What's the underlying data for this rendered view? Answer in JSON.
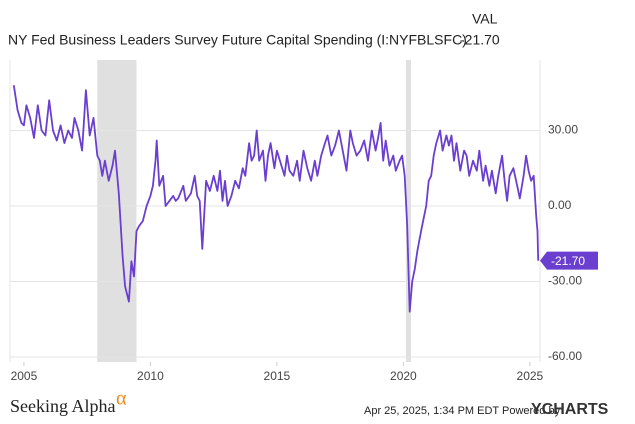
{
  "chart_data": {
    "type": "line",
    "title": "NY Fed Business Leaders Survey Future Capital Spending (I:NYFBLSFC)",
    "value_header": "VAL",
    "last_value_label": "-21.70",
    "footer_date": "Apr 25, 2025, 1:34 PM EDT Powered by",
    "footer_brand": "YCHARTS",
    "logo_text": "Seeking Alpha",
    "logo_mark": "α",
    "xlim": [
      2004.45,
      2025.4
    ],
    "ylim": [
      -62,
      58
    ],
    "xticks": [
      2005,
      2010,
      2015,
      2020,
      2025
    ],
    "yticks": [
      {
        "value": 30,
        "label": "30.00"
      },
      {
        "value": 0,
        "label": "0.00"
      },
      {
        "value": -30,
        "label": "-30.00"
      },
      {
        "value": -60,
        "label": "-60.00"
      }
    ],
    "grid": true,
    "shaded_periods": [
      [
        2007.9,
        2009.45
      ],
      [
        2020.1,
        2020.3
      ]
    ],
    "series": [
      {
        "name": "NY Fed Business Leaders Survey Future Capital Spending",
        "color": "#6a3fd0",
        "x": [
          2004.6,
          2004.75,
          2004.9,
          2005.0,
          2005.1,
          2005.25,
          2005.4,
          2005.55,
          2005.7,
          2005.85,
          2006.0,
          2006.15,
          2006.3,
          2006.45,
          2006.6,
          2006.75,
          2006.9,
          2007.0,
          2007.15,
          2007.3,
          2007.45,
          2007.6,
          2007.75,
          2007.9,
          2008.0,
          2008.1,
          2008.2,
          2008.35,
          2008.5,
          2008.6,
          2008.75,
          2008.9,
          2009.0,
          2009.15,
          2009.25,
          2009.35,
          2009.45,
          2009.55,
          2009.7,
          2009.85,
          2010.0,
          2010.1,
          2010.2,
          2010.25,
          2010.35,
          2010.5,
          2010.6,
          2010.75,
          2010.9,
          2011.0,
          2011.1,
          2011.3,
          2011.4,
          2011.6,
          2011.75,
          2011.85,
          2011.95,
          2012.05,
          2012.2,
          2012.35,
          2012.5,
          2012.65,
          2012.75,
          2012.85,
          2012.95,
          2013.05,
          2013.2,
          2013.35,
          2013.5,
          2013.65,
          2013.75,
          2013.9,
          2014.0,
          2014.1,
          2014.2,
          2014.3,
          2014.45,
          2014.55,
          2014.65,
          2014.75,
          2014.9,
          2015.0,
          2015.15,
          2015.3,
          2015.4,
          2015.5,
          2015.65,
          2015.8,
          2015.9,
          2016.05,
          2016.2,
          2016.35,
          2016.5,
          2016.6,
          2016.75,
          2016.9,
          2017.0,
          2017.15,
          2017.3,
          2017.45,
          2017.6,
          2017.75,
          2017.9,
          2018.0,
          2018.15,
          2018.3,
          2018.45,
          2018.6,
          2018.75,
          2018.9,
          2019.0,
          2019.1,
          2019.2,
          2019.3,
          2019.45,
          2019.6,
          2019.7,
          2019.85,
          2019.95,
          2020.05,
          2020.15,
          2020.25,
          2020.35,
          2020.45,
          2020.55,
          2020.7,
          2020.8,
          2020.9,
          2021.0,
          2021.1,
          2021.2,
          2021.3,
          2021.45,
          2021.55,
          2021.7,
          2021.8,
          2021.9,
          2022.0,
          2022.1,
          2022.25,
          2022.4,
          2022.5,
          2022.6,
          2022.75,
          2022.9,
          2023.0,
          2023.15,
          2023.25,
          2023.4,
          2023.5,
          2023.65,
          2023.75,
          2023.9,
          2024.0,
          2024.1,
          2024.2,
          2024.35,
          2024.5,
          2024.6,
          2024.75,
          2024.85,
          2024.95,
          2025.05,
          2025.15,
          2025.25,
          2025.3,
          2025.33
        ],
        "values": [
          48,
          38,
          33,
          32,
          40,
          35,
          27,
          40,
          30,
          28,
          42,
          30,
          26,
          32,
          25,
          30,
          27,
          35,
          30,
          22,
          46,
          28,
          35,
          20,
          18,
          12,
          18,
          10,
          16,
          22,
          5,
          -20,
          -32,
          -38,
          -22,
          -28,
          -10,
          -8,
          -6,
          0,
          4,
          8,
          18,
          26,
          8,
          12,
          0,
          2,
          4,
          2,
          3,
          8,
          2,
          5,
          12,
          4,
          2,
          -17,
          10,
          6,
          12,
          6,
          14,
          2,
          10,
          0,
          4,
          10,
          7,
          15,
          12,
          25,
          18,
          20,
          30,
          18,
          22,
          10,
          20,
          25,
          15,
          22,
          17,
          12,
          20,
          14,
          12,
          18,
          10,
          22,
          15,
          10,
          18,
          12,
          20,
          25,
          28,
          20,
          24,
          30,
          22,
          14,
          30,
          25,
          20,
          22,
          26,
          18,
          30,
          22,
          27,
          33,
          18,
          26,
          16,
          20,
          14,
          18,
          20,
          12,
          -8,
          -42,
          -30,
          -25,
          -18,
          -10,
          -5,
          0,
          10,
          12,
          20,
          25,
          30,
          22,
          28,
          24,
          28,
          18,
          25,
          14,
          22,
          20,
          12,
          18,
          14,
          22,
          10,
          16,
          8,
          14,
          5,
          12,
          20,
          10,
          2,
          12,
          15,
          8,
          3,
          12,
          20,
          14,
          10,
          12,
          -4,
          -10,
          -21.7
        ]
      }
    ]
  }
}
